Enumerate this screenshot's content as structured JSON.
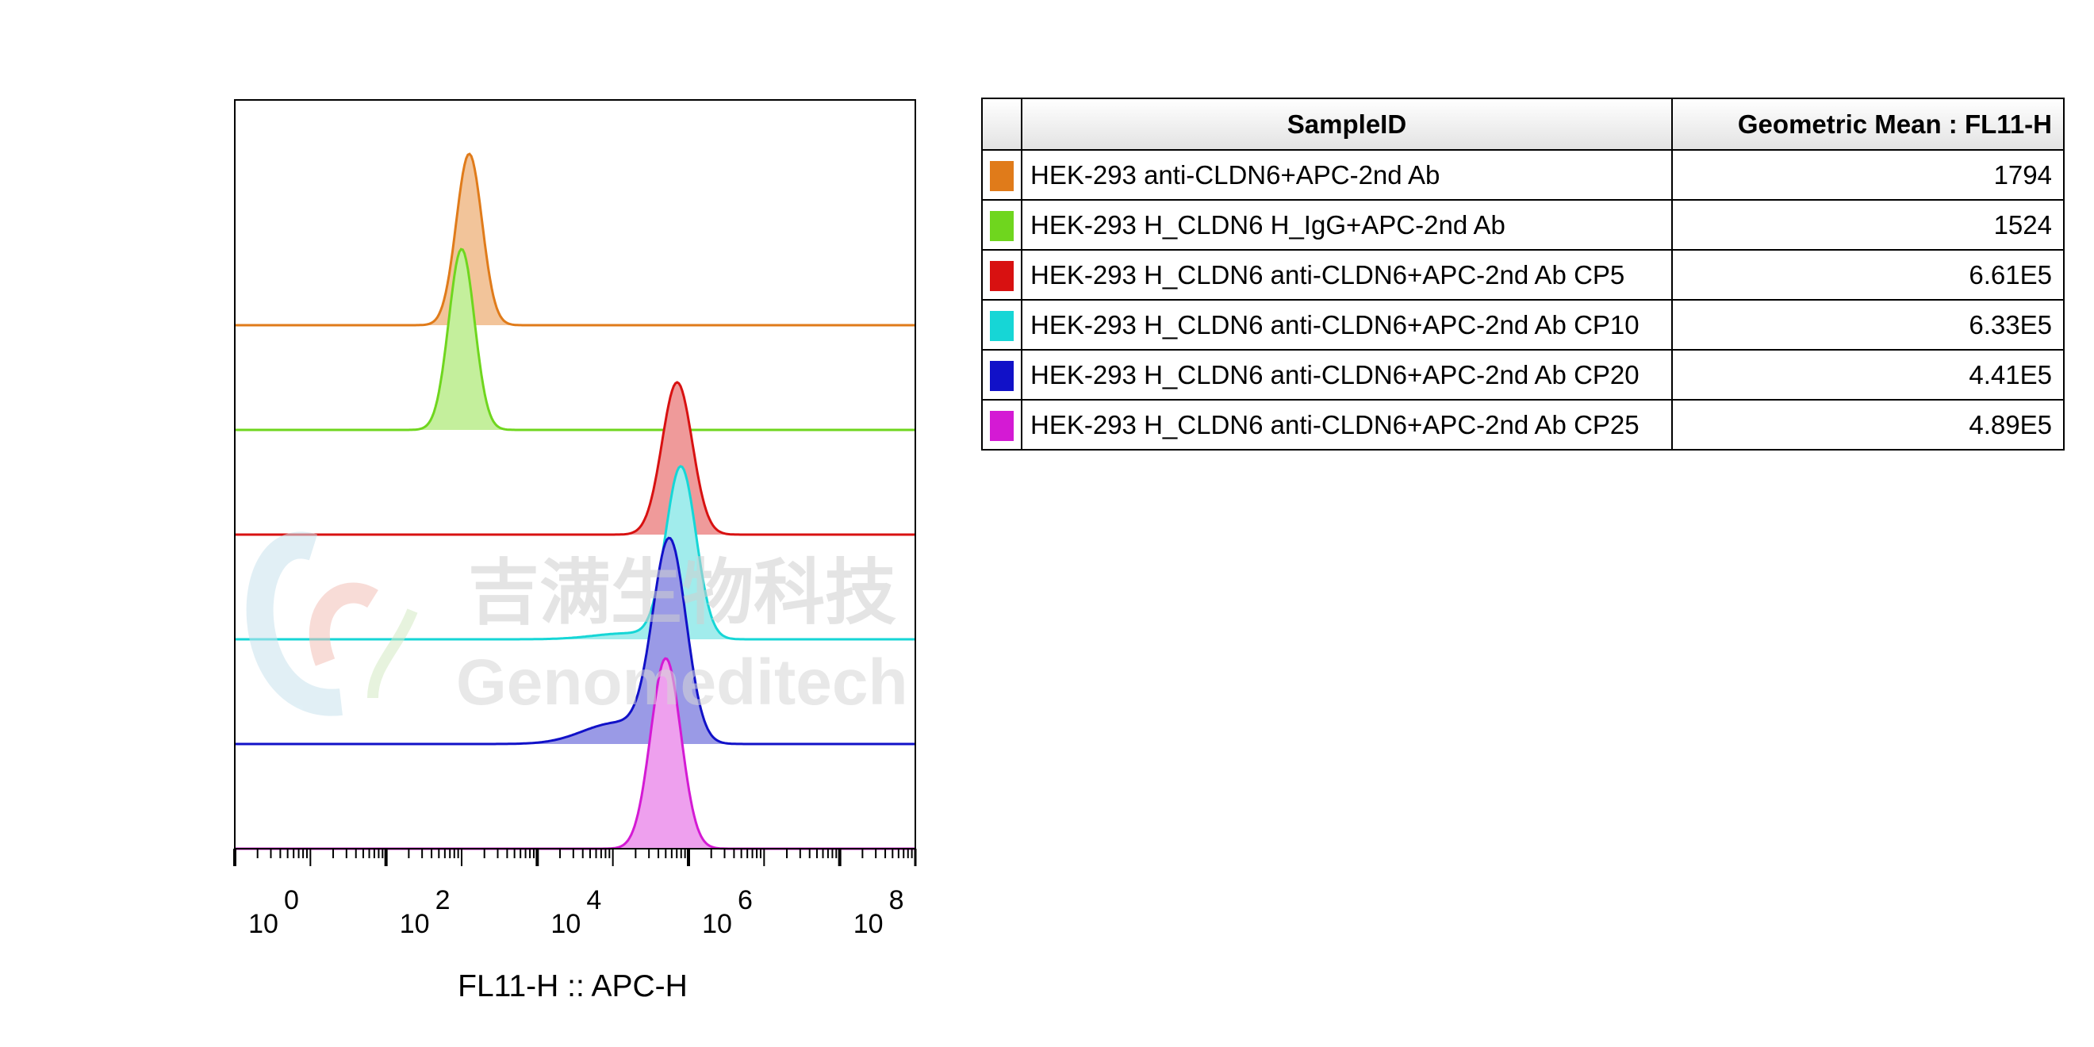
{
  "chart_data": {
    "type": "histogram_overlay",
    "xlabel": "FL11-H :: APC-H",
    "x_scale": "log10",
    "xlim": [
      1,
      1000000000
    ],
    "x_ticks": [
      {
        "base": "10",
        "exp": "0",
        "value": 1
      },
      {
        "base": "10",
        "exp": "2",
        "value": 100
      },
      {
        "base": "10",
        "exp": "4",
        "value": 10000
      },
      {
        "base": "10",
        "exp": "6",
        "value": 1000000
      },
      {
        "base": "10",
        "exp": "8",
        "value": 100000000
      }
    ],
    "series": [
      {
        "name": "HEK-293 anti-CLDN6+APC-2nd Ab",
        "color": "#e07b1a",
        "fill": "#f2c49a",
        "geometric_mean": "1794",
        "peak_log10": 3.1,
        "width": 0.17,
        "left_tail": 0,
        "height": 0.9
      },
      {
        "name": "HEK-293 H_CLDN6 H_IgG+APC-2nd Ab",
        "color": "#6fd61e",
        "fill": "#c4ef9c",
        "geometric_mean": "1524",
        "peak_log10": 3.0,
        "width": 0.17,
        "left_tail": 0,
        "height": 0.95
      },
      {
        "name": "HEK-293 H_CLDN6 anti-CLDN6+APC-2nd Ab CP5",
        "color": "#d81111",
        "fill": "#ef9a9a",
        "geometric_mean": "6.61E5",
        "peak_log10": 5.85,
        "width": 0.2,
        "left_tail": 0,
        "height": 0.8
      },
      {
        "name": "HEK-293 H_CLDN6 anti-CLDN6+APC-2nd Ab CP10",
        "color": "#16d6d6",
        "fill": "#a1ecec",
        "geometric_mean": "6.33E5",
        "peak_log10": 5.9,
        "width": 0.2,
        "left_tail": 0.1,
        "height": 0.9
      },
      {
        "name": "HEK-293 H_CLDN6 anti-CLDN6+APC-2nd Ab CP20",
        "color": "#1111c8",
        "fill": "#9a9ae6",
        "geometric_mean": "4.41E5",
        "peak_log10": 5.75,
        "width": 0.22,
        "left_tail": 0.3,
        "height": 1.05
      },
      {
        "name": "HEK-293 H_CLDN6 anti-CLDN6+APC-2nd Ab CP25",
        "color": "#d41ad4",
        "fill": "#eea0ee",
        "geometric_mean": "4.89E5",
        "peak_log10": 5.7,
        "width": 0.2,
        "left_tail": 0,
        "height": 1.0
      }
    ]
  },
  "table": {
    "header_sample": "SampleID",
    "header_value": "Geometric Mean : FL11-H"
  },
  "watermark": {
    "cn": "吉满生物科技",
    "en": "Genomeditech"
  }
}
